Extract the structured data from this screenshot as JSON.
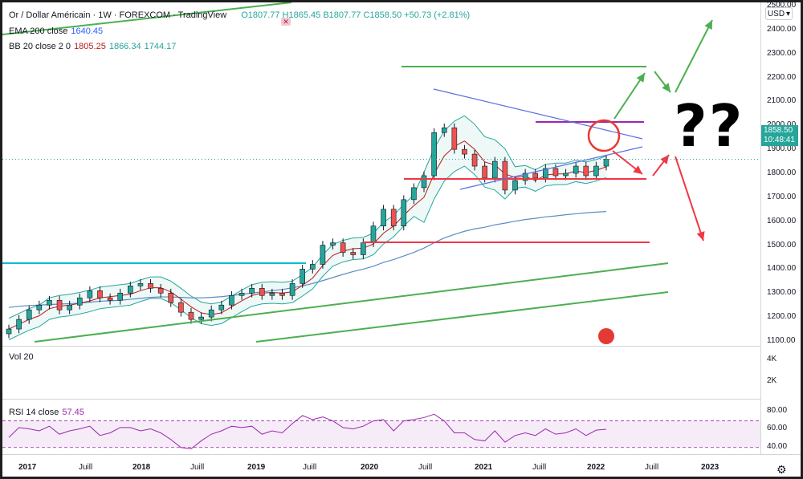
{
  "header": {
    "symbol": "Or / Dollar Américain · 1W · FOREXCOM · TradingView",
    "ohlc": "O1807.77 H1865.45 B1807.77 C1858.50 +50.73 (+2.81%)",
    "ema_label": "EMA 200 close",
    "ema_value": "1640.45",
    "bb_label": "BB 20 close 2 0",
    "bb_mid": "1805.25",
    "bb_upper": "1866.34",
    "bb_lower": "1744.17"
  },
  "price_axis": {
    "currency": "USD",
    "ticks": [
      "2500.00",
      "2400.00",
      "2300.00",
      "2200.00",
      "2100.00",
      "2000.00",
      "1900.00",
      "1800.00",
      "1700.00",
      "1600.00",
      "1500.00",
      "1400.00",
      "1300.00",
      "1200.00",
      "1100.00"
    ],
    "last_price": "1858.50",
    "countdown": "10:48:41"
  },
  "volume_pane": {
    "label": "Vol 20",
    "ticks": [
      "4K",
      "2K"
    ]
  },
  "rsi_pane": {
    "label": "RSI 14 close",
    "value": "57.45",
    "ticks": [
      "80.00",
      "60.00",
      "40.00"
    ]
  },
  "time_axis": [
    "2017",
    "Juill",
    "2018",
    "Juill",
    "2019",
    "Juill",
    "2020",
    "Juill",
    "2021",
    "Juill",
    "2022",
    "Juill",
    "2023"
  ],
  "annotation": {
    "question_marks": "??"
  },
  "colors": {
    "up": "#26a69a",
    "down": "#ef5350",
    "green_line": "#4caf50",
    "red_line": "#f23645",
    "cyan_line": "#00bcd4",
    "rsi": "#9c27b0"
  },
  "chart_data": {
    "type": "line",
    "title": "Or / Dollar Américain",
    "xlabel": "",
    "ylabel": "",
    "x_start": "2017-01",
    "x_end": "2022-03",
    "ylim": [
      1050,
      2520
    ],
    "series": [
      {
        "name": "Close",
        "values": [
          1150,
          1190,
          1230,
          1250,
          1270,
          1230,
          1250,
          1280,
          1310,
          1280,
          1270,
          1300,
          1330,
          1340,
          1320,
          1300,
          1260,
          1220,
          1190,
          1200,
          1230,
          1250,
          1290,
          1300,
          1320,
          1290,
          1300,
          1290,
          1340,
          1400,
          1420,
          1500,
          1510,
          1470,
          1460,
          1510,
          1580,
          1650,
          1580,
          1690,
          1740,
          1790,
          1970,
          1990,
          1900,
          1880,
          1830,
          1780,
          1850,
          1730,
          1770,
          1800,
          1780,
          1820,
          1790,
          1800,
          1830,
          1790,
          1830,
          1858.5
        ]
      },
      {
        "name": "EMA 200 close",
        "values": [
          1240,
          1245,
          1248,
          1250,
          1252,
          1254,
          1256,
          1258,
          1262,
          1266,
          1268,
          1270,
          1274,
          1278,
          1282,
          1284,
          1284,
          1282,
          1280,
          1280,
          1282,
          1285,
          1290,
          1295,
          1300,
          1305,
          1310,
          1315,
          1322,
          1330,
          1340,
          1352,
          1365,
          1378,
          1390,
          1400,
          1412,
          1428,
          1440,
          1455,
          1470,
          1488,
          1510,
          1530,
          1545,
          1558,
          1568,
          1575,
          1585,
          1592,
          1600,
          1607,
          1612,
          1618,
          1622,
          1627,
          1631,
          1635,
          1638,
          1640.45
        ]
      }
    ],
    "rsi": {
      "name": "RSI 14 close",
      "values": [
        45,
        60,
        58,
        55,
        62,
        50,
        55,
        58,
        62,
        48,
        52,
        60,
        60,
        55,
        58,
        52,
        42,
        30,
        28,
        40,
        50,
        55,
        62,
        60,
        62,
        50,
        55,
        52,
        66,
        78,
        72,
        76,
        70,
        60,
        58,
        62,
        70,
        72,
        55,
        70,
        72,
        75,
        80,
        70,
        52,
        52,
        42,
        40,
        55,
        38,
        48,
        52,
        48,
        58,
        50,
        52,
        58,
        48,
        56,
        57.45
      ],
      "ylim": [
        20,
        90
      ]
    }
  }
}
